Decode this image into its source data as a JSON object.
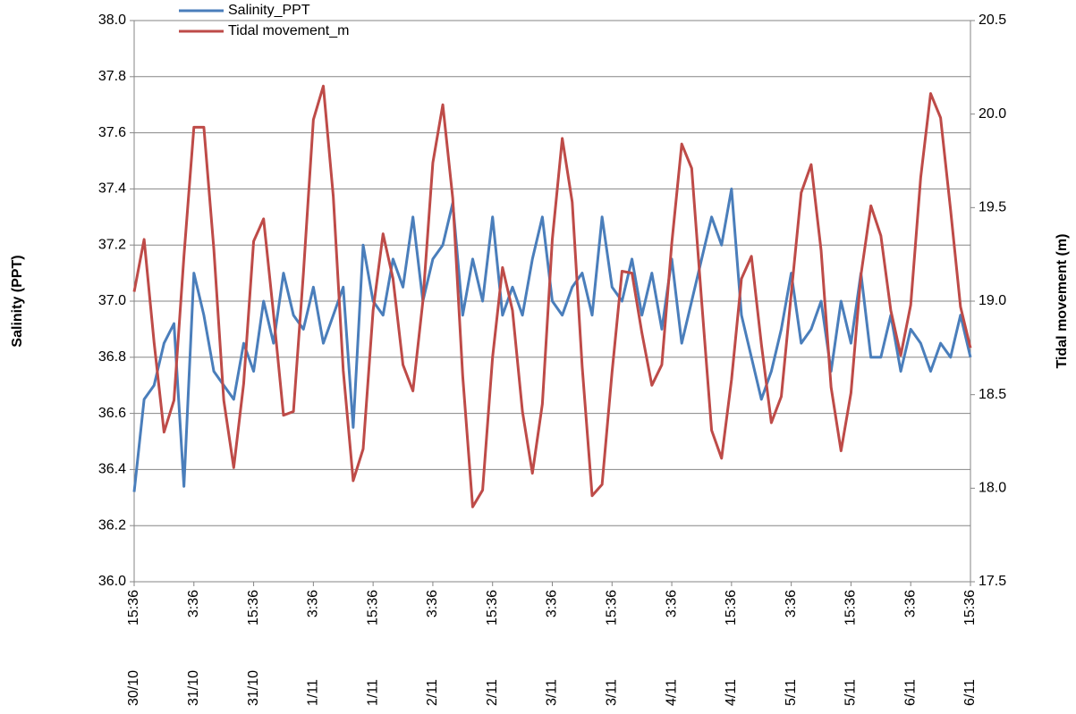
{
  "chart_data": {
    "type": "line",
    "y_label": "Salinity (PPT)",
    "y2_label": "Tidal movement (m)",
    "categories": [
      [
        "15:36",
        "30/10"
      ],
      null,
      null,
      null,
      null,
      null,
      [
        "3:36",
        "31/10"
      ],
      null,
      null,
      null,
      null,
      null,
      [
        "15:36",
        "31/10"
      ],
      null,
      null,
      null,
      null,
      null,
      [
        "3:36",
        "1/11"
      ],
      null,
      null,
      null,
      null,
      null,
      [
        "15:36",
        "1/11"
      ],
      null,
      null,
      null,
      null,
      null,
      [
        "3:36",
        "2/11"
      ],
      null,
      null,
      null,
      null,
      null,
      [
        "15:36",
        "2/11"
      ],
      null,
      null,
      null,
      null,
      null,
      [
        "3:36",
        "3/11"
      ],
      null,
      null,
      null,
      null,
      null,
      [
        "15:36",
        "3/11"
      ],
      null,
      null,
      null,
      null,
      null,
      [
        "3:36",
        "4/11"
      ],
      null,
      null,
      null,
      null,
      null,
      [
        "15:36",
        "4/11"
      ],
      null,
      null,
      null,
      null,
      null,
      [
        "3:36",
        "5/11"
      ],
      null,
      null,
      null,
      null,
      null,
      [
        "15:36",
        "5/11"
      ],
      null,
      null,
      null,
      null,
      null,
      [
        "3:36",
        "6/11"
      ],
      null,
      null,
      null,
      null,
      null,
      [
        "15:36",
        "6/11"
      ]
    ],
    "series": [
      {
        "name": "Salinity_PPT",
        "color": "#4a7ebb",
        "axis": "y",
        "values": [
          36.32,
          36.65,
          36.7,
          36.85,
          36.92,
          36.34,
          37.1,
          36.95,
          36.75,
          36.7,
          36.65,
          36.85,
          36.75,
          37.0,
          36.85,
          37.1,
          36.95,
          36.9,
          37.05,
          36.85,
          36.95,
          37.05,
          36.55,
          37.2,
          37.0,
          36.95,
          37.15,
          37.05,
          37.3,
          37.0,
          37.15,
          37.2,
          37.35,
          36.95,
          37.15,
          37.0,
          37.3,
          36.95,
          37.05,
          36.95,
          37.15,
          37.3,
          37.0,
          36.95,
          37.05,
          37.1,
          36.95,
          37.3,
          37.05,
          37.0,
          37.15,
          36.95,
          37.1,
          36.9,
          37.15,
          36.85,
          37.0,
          37.15,
          37.3,
          37.2,
          37.4,
          36.95,
          36.8,
          36.65,
          36.75,
          36.9,
          37.1,
          36.85,
          36.9,
          37.0,
          36.75,
          37.0,
          36.85,
          37.1,
          36.8,
          36.8,
          36.95,
          36.75,
          36.9,
          36.85,
          36.75,
          36.85,
          36.8,
          36.95,
          36.8
        ]
      },
      {
        "name": "Tidal movement_m",
        "color": "#be4b48",
        "axis": "y2",
        "values": [
          19.05,
          19.33,
          18.78,
          18.3,
          18.47,
          19.24,
          19.93,
          19.93,
          19.28,
          18.47,
          18.11,
          18.56,
          19.32,
          19.44,
          18.93,
          18.39,
          18.41,
          19.15,
          19.97,
          20.15,
          19.56,
          18.63,
          18.04,
          18.21,
          18.95,
          19.36,
          19.12,
          18.66,
          18.52,
          19.0,
          19.74,
          20.05,
          19.55,
          18.6,
          17.9,
          17.99,
          18.7,
          19.18,
          18.95,
          18.41,
          18.08,
          18.45,
          19.33,
          19.87,
          19.53,
          18.65,
          17.96,
          18.02,
          18.62,
          19.16,
          19.15,
          18.83,
          18.55,
          18.66,
          19.31,
          19.84,
          19.71,
          19.0,
          18.31,
          18.16,
          18.58,
          19.12,
          19.24,
          18.77,
          18.35,
          18.49,
          19.04,
          19.58,
          19.73,
          19.27,
          18.54,
          18.2,
          18.51,
          19.14,
          19.51,
          19.35,
          18.95,
          18.71,
          18.98,
          19.66,
          20.11,
          19.98,
          19.49,
          18.97,
          18.75
        ]
      }
    ],
    "ylim": [
      36.0,
      38.0
    ],
    "yticks": [
      {
        "value": 36.0,
        "label": "36.0"
      },
      36.2,
      36.4,
      36.6,
      36.8,
      {
        "value": 37.0,
        "label": "37.0"
      },
      37.2,
      37.4,
      37.6,
      37.8,
      {
        "value": 38.0,
        "label": "38.0"
      }
    ],
    "y2lim": [
      17.5,
      20.5
    ],
    "y2ticks": [
      17.5,
      {
        "value": 18.0,
        "label": "18.0"
      },
      18.5,
      {
        "value": 19.0,
        "label": "19.0"
      },
      19.5,
      {
        "value": 20.0,
        "label": "20.0"
      },
      20.5
    ],
    "grid": true,
    "legend": "top-left"
  }
}
